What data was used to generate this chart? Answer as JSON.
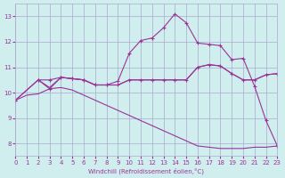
{
  "xlabel": "Windchill (Refroidissement éolien,°C)",
  "ylabel": "",
  "xlim": [
    0,
    23
  ],
  "ylim": [
    7.5,
    13.5
  ],
  "yticks": [
    8,
    9,
    10,
    11,
    12,
    13
  ],
  "xticks": [
    0,
    1,
    2,
    3,
    4,
    5,
    6,
    7,
    8,
    9,
    10,
    11,
    12,
    13,
    14,
    15,
    16,
    17,
    18,
    19,
    20,
    21,
    22,
    23
  ],
  "bg_color": "#d0eeee",
  "grid_color": "#aaaacc",
  "line_color": "#993399",
  "lines": [
    {
      "x": [
        0,
        1,
        2,
        3,
        4,
        5,
        6,
        7,
        8,
        9,
        10,
        11,
        12,
        13,
        14,
        15,
        16,
        17,
        18,
        19,
        20,
        21,
        22,
        23
      ],
      "y": [
        9.7,
        9.9,
        9.95,
        10.15,
        10.2,
        10.1,
        9.9,
        9.7,
        9.5,
        9.3,
        9.1,
        8.9,
        8.7,
        8.5,
        8.3,
        8.1,
        7.9,
        7.85,
        7.8,
        7.8,
        7.8,
        7.85,
        7.85,
        7.9
      ],
      "marker": false
    },
    {
      "x": [
        0,
        2,
        3,
        4,
        5,
        6,
        7,
        8,
        9,
        10,
        11,
        12,
        13,
        14,
        15,
        16,
        17,
        18,
        19,
        20,
        21,
        22,
        23
      ],
      "y": [
        9.7,
        10.5,
        10.5,
        10.6,
        10.55,
        10.5,
        10.3,
        10.3,
        10.3,
        10.5,
        10.5,
        10.5,
        10.5,
        10.5,
        10.5,
        11.0,
        11.1,
        11.05,
        10.75,
        10.5,
        10.5,
        10.7,
        10.75
      ],
      "marker": true
    },
    {
      "x": [
        2,
        3,
        4,
        5,
        6,
        7,
        8,
        9,
        10,
        11,
        12,
        13,
        14,
        15,
        16,
        17,
        18,
        19,
        20,
        21,
        22,
        23
      ],
      "y": [
        10.5,
        10.2,
        10.6,
        10.55,
        10.5,
        10.3,
        10.3,
        10.3,
        10.5,
        10.5,
        10.5,
        10.5,
        10.5,
        10.5,
        11.0,
        11.1,
        11.05,
        10.75,
        10.5,
        10.5,
        10.7,
        10.75
      ],
      "marker": false
    },
    {
      "x": [
        0,
        2,
        3,
        4,
        5,
        6,
        7,
        8,
        9,
        10,
        11,
        12,
        13,
        14,
        15,
        16,
        17,
        18,
        19,
        20,
        21,
        22,
        23
      ],
      "y": [
        9.7,
        10.5,
        10.15,
        10.6,
        10.55,
        10.5,
        10.3,
        10.3,
        10.45,
        11.55,
        12.05,
        12.15,
        12.55,
        13.1,
        12.75,
        11.95,
        11.9,
        11.85,
        11.3,
        11.35,
        10.25,
        8.9,
        7.9
      ],
      "marker": true
    }
  ]
}
